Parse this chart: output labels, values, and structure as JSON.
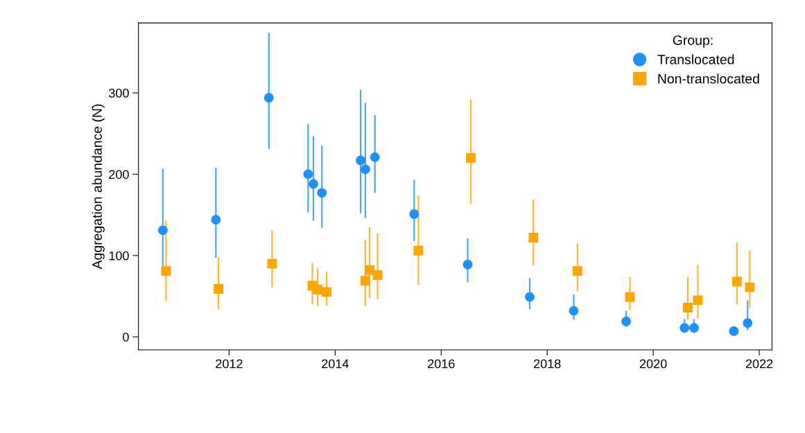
{
  "chart_data": {
    "type": "scatter",
    "ylabel": "Aggregation abundance (N̂)",
    "legend_title": "Group:",
    "legend": "top right",
    "grid": false,
    "xlim": [
      2010.29,
      2022.24
    ],
    "xticks": [
      2012,
      2014,
      2016,
      2018,
      2020,
      2022
    ],
    "ylim": [
      -16,
      386
    ],
    "yticks": [
      0,
      100,
      200,
      300
    ],
    "series": [
      {
        "name": "Translocated",
        "color": "#1e90ff",
        "marker": "circle",
        "x": [
          2010.75,
          2011.75,
          2012.75,
          2013.49,
          2013.59,
          2013.75,
          2014.48,
          2014.57,
          2014.75,
          2015.49,
          2016.5,
          2017.67,
          2018.5,
          2019.49,
          2020.59,
          2020.77,
          2021.52,
          2021.78
        ],
        "values": [
          131,
          144,
          294,
          200,
          188,
          177,
          217,
          206,
          221,
          151,
          89,
          49,
          32,
          19,
          11,
          11,
          7,
          17
        ],
        "errors": [
          [
            80,
            207
          ],
          [
            97,
            208
          ],
          [
            231,
            374
          ],
          [
            153,
            262
          ],
          [
            143,
            247
          ],
          [
            134,
            235
          ],
          [
            152,
            304
          ],
          [
            146,
            288
          ],
          [
            177,
            273
          ],
          [
            118,
            193
          ],
          [
            67,
            121
          ],
          [
            34,
            72
          ],
          [
            21,
            52
          ],
          [
            12,
            32
          ],
          [
            5,
            22
          ],
          [
            5,
            22
          ],
          [
            3,
            13
          ],
          [
            8,
            45
          ]
        ]
      },
      {
        "name": "Non-translocated",
        "color": "#ffa500",
        "marker": "square",
        "x": [
          2010.81,
          2011.8,
          2012.81,
          2013.57,
          2013.67,
          2013.75,
          2013.84,
          2014.57,
          2014.65,
          2014.8,
          2015.57,
          2016.56,
          2017.74,
          2018.57,
          2019.56,
          2020.65,
          2020.84,
          2021.58,
          2021.82
        ],
        "values": [
          81,
          59,
          90,
          63,
          58,
          null,
          55,
          69,
          82,
          76,
          106,
          220,
          122,
          81,
          49,
          36,
          45,
          68,
          61
        ],
        "errors": [
          [
            44,
            143
          ],
          [
            34,
            98
          ],
          [
            61,
            131
          ],
          [
            40,
            91
          ],
          [
            38,
            84
          ],
          null,
          [
            38,
            80
          ],
          [
            38,
            119
          ],
          [
            48,
            135
          ],
          [
            46,
            127
          ],
          [
            64,
            174
          ],
          [
            164,
            292
          ],
          [
            88,
            169
          ],
          [
            56,
            115
          ],
          [
            33,
            74
          ],
          [
            21,
            74
          ],
          [
            23,
            89
          ],
          [
            40,
            116
          ],
          [
            36,
            106
          ]
        ]
      }
    ]
  }
}
